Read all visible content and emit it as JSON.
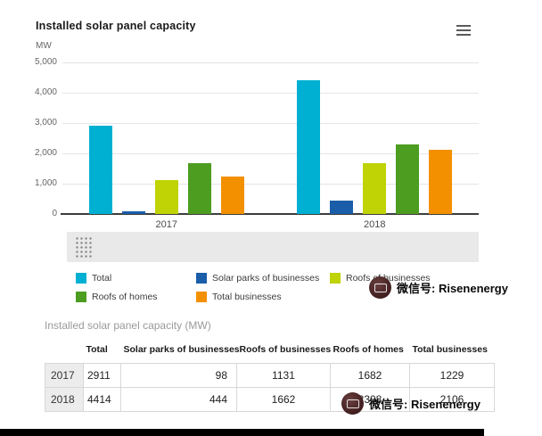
{
  "chart": {
    "title": "Installed solar panel capacity",
    "y_unit": "MW"
  },
  "chart_data": {
    "type": "bar",
    "categories": [
      "2017",
      "2018"
    ],
    "series": [
      {
        "name": "Total",
        "color": "#00b0d2",
        "values": [
          2911,
          4414
        ]
      },
      {
        "name": "Solar parks of businesses",
        "color": "#1a5da9",
        "values": [
          98,
          444
        ]
      },
      {
        "name": "Roofs of businesses",
        "color": "#bfd305",
        "values": [
          1131,
          1662
        ]
      },
      {
        "name": "Roofs of homes",
        "color": "#4c9d20",
        "values": [
          1682,
          2308
        ]
      },
      {
        "name": "Total businesses",
        "color": "#f39000",
        "values": [
          1229,
          2106
        ]
      }
    ],
    "title": "Installed solar panel capacity",
    "xlabel": "",
    "ylabel": "MW",
    "ylim": [
      0,
      5000
    ],
    "ytick_labels": [
      "5,000",
      "4,000",
      "3,000",
      "2,000",
      "1,000",
      "0"
    ],
    "grid": true,
    "legend_position": "bottom"
  },
  "table": {
    "title": "Installed solar panel capacity (MW)",
    "columns": [
      "",
      "Total",
      "Solar parks of businesses",
      "Roofs of businesses",
      "Roofs of homes",
      "Total businesses"
    ],
    "rows": [
      {
        "year": "2017",
        "values": [
          "2911",
          "98",
          "1131",
          "1682",
          "1229"
        ]
      },
      {
        "year": "2018",
        "values": [
          "4414",
          "444",
          "1662",
          "2308",
          "2106"
        ]
      }
    ]
  },
  "watermark": {
    "label": "微信号: Risenenergy"
  }
}
